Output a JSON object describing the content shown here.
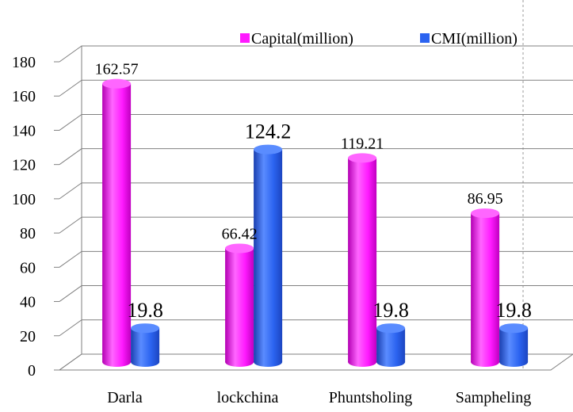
{
  "chart_data": {
    "type": "bar",
    "style": "3d-cylinder",
    "categories": [
      "Darla",
      "lockchina",
      "Phuntsholing",
      "Sampheling"
    ],
    "series": [
      {
        "name": "Capital(million)",
        "values": [
          162.57,
          66.42,
          119.21,
          86.95
        ],
        "value_labels": [
          "162.57",
          "66.42",
          "119.21",
          "86.95"
        ],
        "color": "#ff1aff"
      },
      {
        "name": "CMI(million)",
        "values": [
          19.8,
          124.2,
          19.8,
          19.8
        ],
        "value_labels": [
          "19.8",
          "124.2",
          "19.8",
          "19.8"
        ],
        "color": "#2b63f0"
      }
    ],
    "ylim": [
      0,
      180
    ],
    "yticks": [
      0,
      20,
      40,
      60,
      80,
      100,
      120,
      140,
      160,
      180
    ],
    "title": "",
    "xlabel": "",
    "ylabel": "",
    "grid": true,
    "legend": "top-right"
  }
}
